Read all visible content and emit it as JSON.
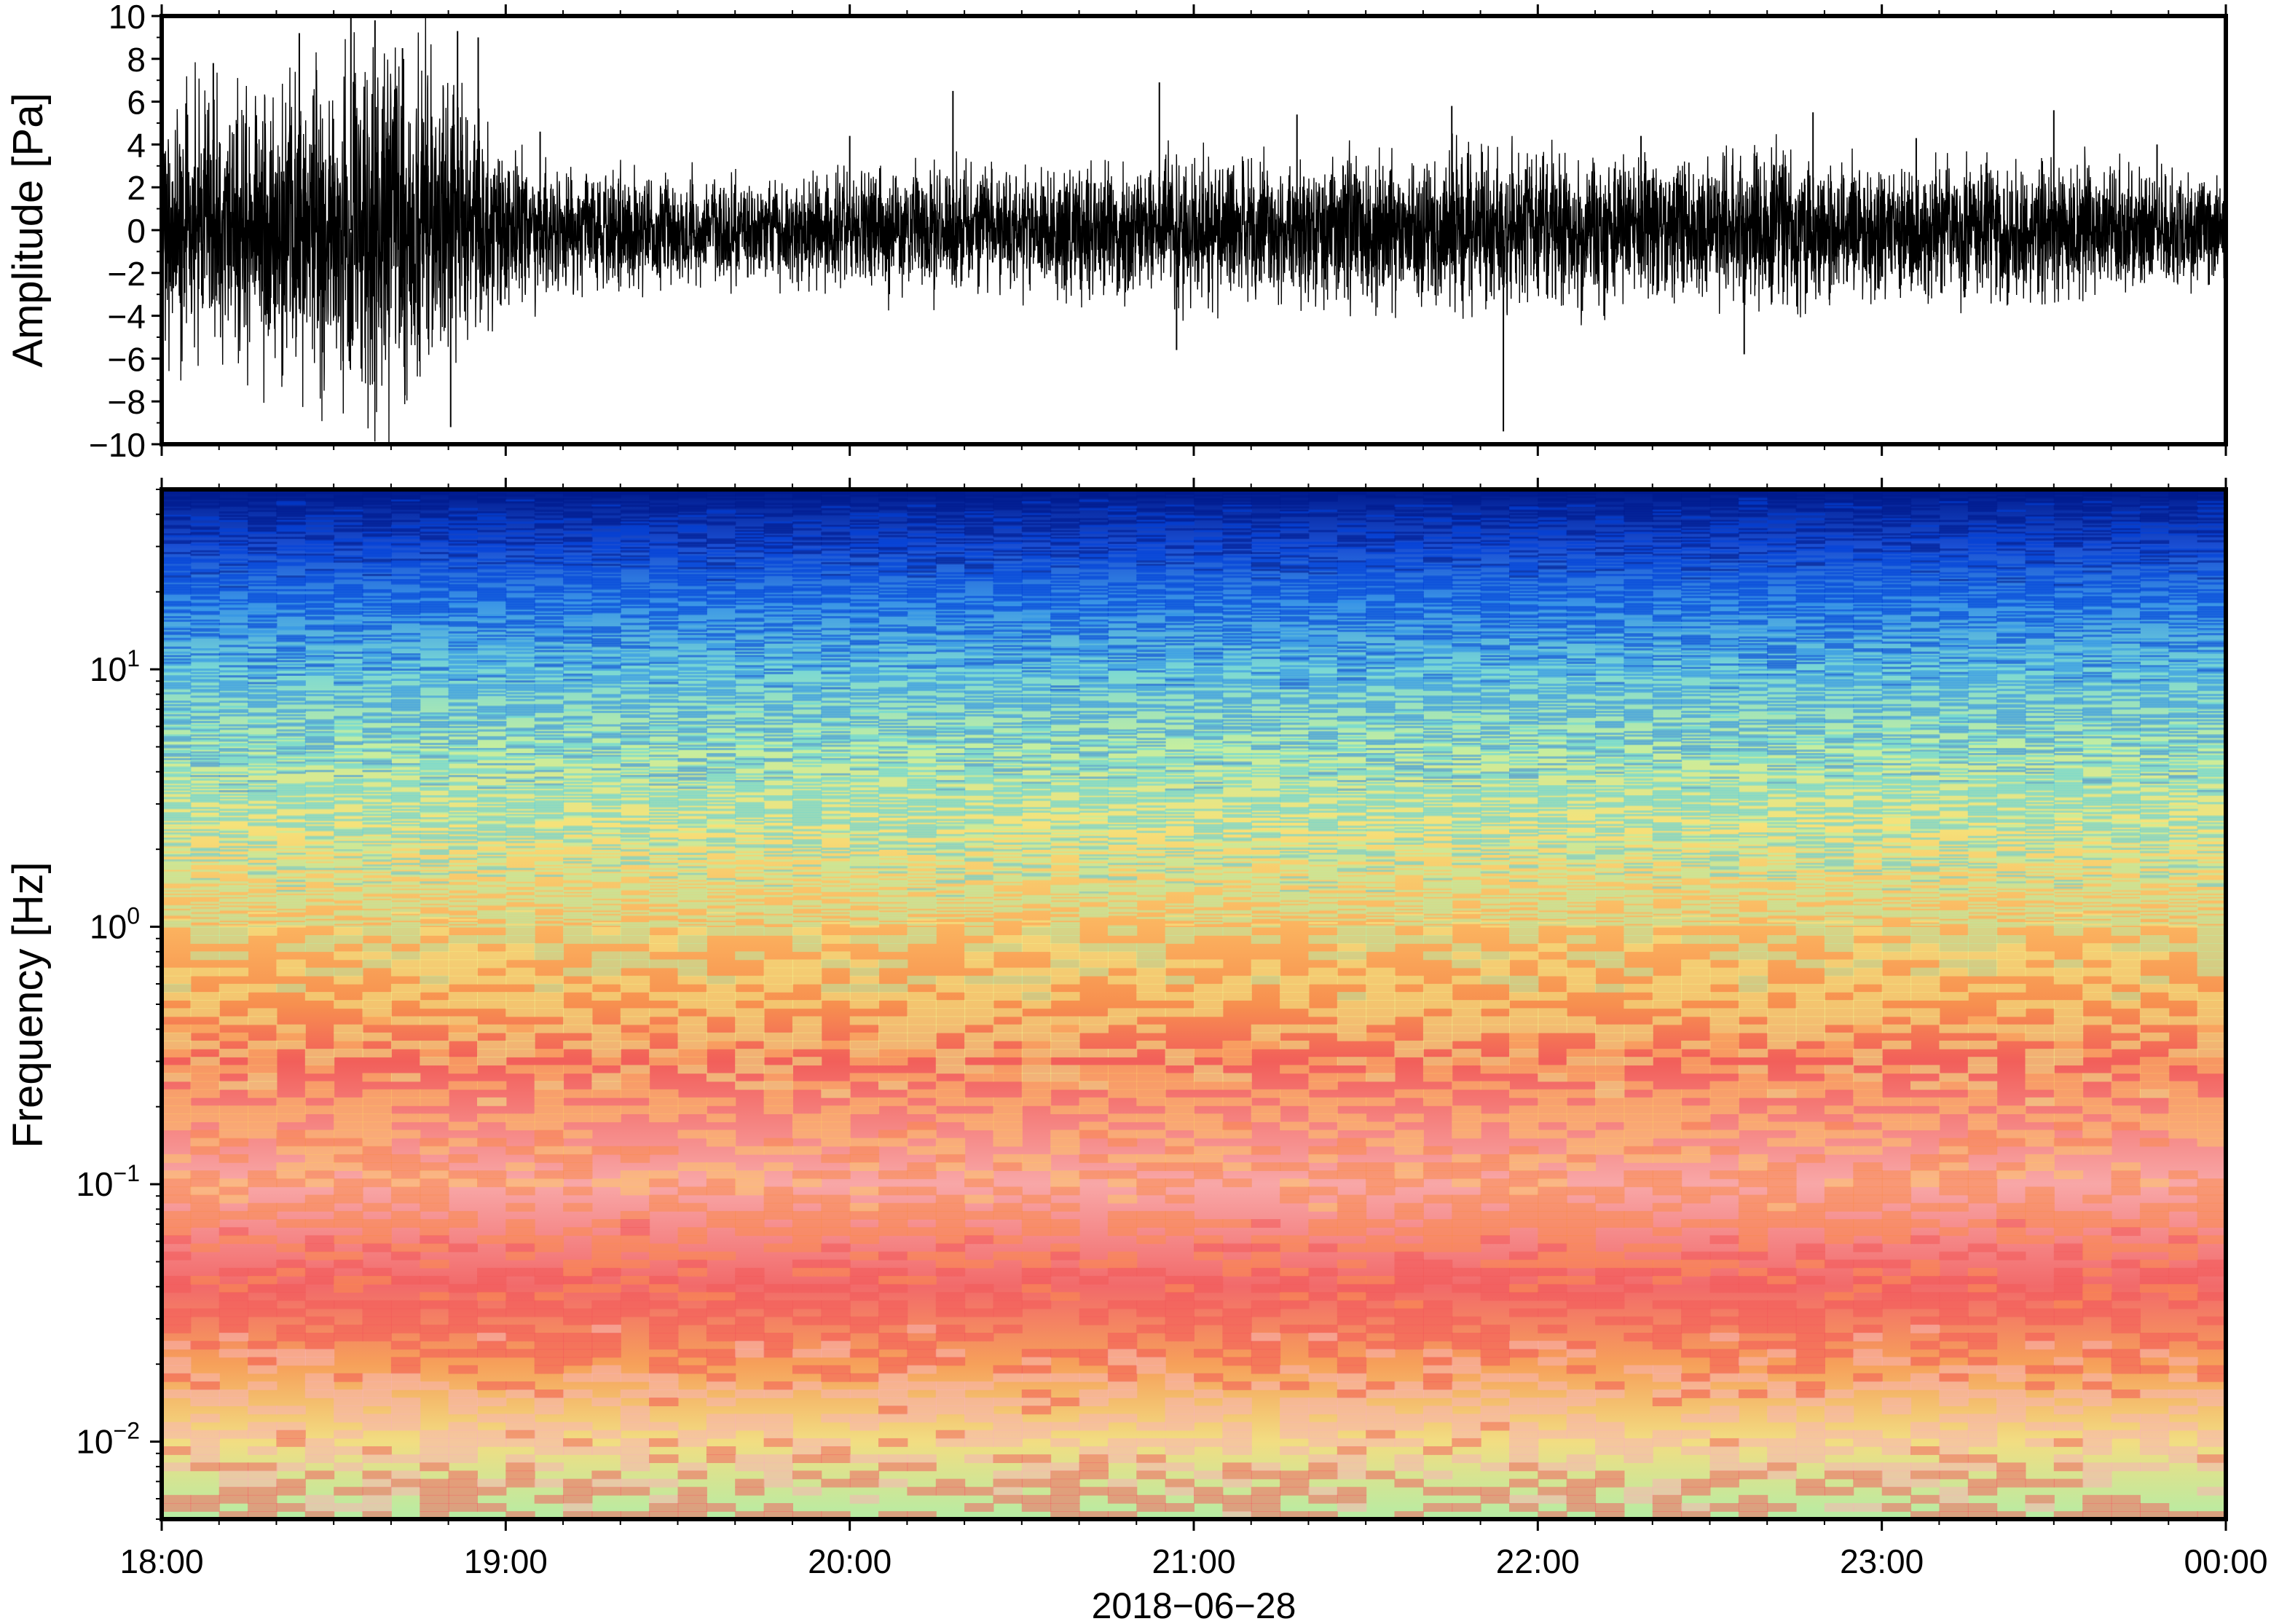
{
  "chart_data": [
    {
      "type": "line",
      "panel": "waveform",
      "ylabel": "Amplitude [Pa]",
      "ylim": [
        -10,
        10
      ],
      "yticks": [
        "10",
        "8",
        "6",
        "4",
        "2",
        "0",
        "−2",
        "−4",
        "−6",
        "−8",
        "−10"
      ],
      "ytick_values": [
        10,
        8,
        6,
        4,
        2,
        0,
        -2,
        -4,
        -6,
        -8,
        -10
      ],
      "xlim": [
        "2018-06-28 18:00",
        "2018-06-29 00:00"
      ],
      "x_label_ticks": [
        "18:00",
        "19:00",
        "20:00",
        "21:00",
        "22:00",
        "23:00",
        "00:00"
      ],
      "series": [
        {
          "x_hours": [
            0.0,
            0.25,
            0.5,
            0.75,
            1.0,
            1.25,
            1.5,
            1.75,
            2.0,
            2.25,
            2.5,
            2.75,
            3.0,
            3.25,
            3.5,
            3.75,
            4.0,
            4.25,
            4.5,
            4.75,
            5.0,
            5.25,
            5.5,
            5.75,
            6.0
          ],
          "envelope": [
            3.0,
            3.4,
            4.2,
            4.6,
            2.0,
            1.6,
            1.4,
            1.3,
            1.5,
            1.6,
            1.7,
            1.7,
            1.8,
            1.8,
            1.9,
            2.0,
            2.0,
            1.9,
            1.9,
            2.0,
            1.8,
            1.7,
            1.8,
            1.6,
            1.3
          ],
          "peaks_x_hours": [
            0.15,
            0.4,
            0.55,
            0.62,
            0.7,
            0.86,
            0.92,
            0.84,
            1.1,
            2.0,
            2.3,
            2.9,
            2.95,
            3.3,
            3.75,
            3.9,
            4.3,
            4.6,
            4.8,
            5.1,
            5.5,
            5.8
          ],
          "peaks_y": [
            7.8,
            9.2,
            10.0,
            9.8,
            8.5,
            9.3,
            9.0,
            -9.2,
            4.6,
            4.4,
            6.5,
            6.9,
            -5.6,
            5.4,
            5.8,
            -9.4,
            4.4,
            -5.8,
            5.5,
            4.3,
            5.6,
            4.0
          ]
        }
      ]
    },
    {
      "type": "heatmap",
      "panel": "spectrogram",
      "ylabel": "Frequency [Hz]",
      "xlabel": "2018−06−28",
      "yscale": "log",
      "ylim": [
        0.005,
        50
      ],
      "yticks": [
        {
          "base": "10",
          "exp": "1",
          "value": 10
        },
        {
          "base": "10",
          "exp": "0",
          "value": 1
        },
        {
          "base": "10",
          "exp": "−1",
          "value": 0.1
        },
        {
          "base": "10",
          "exp": "−2",
          "value": 0.01
        }
      ],
      "xlim": [
        "2018-06-28 18:00",
        "2018-06-29 00:00"
      ],
      "x_label_ticks": [
        "18:00",
        "19:00",
        "20:00",
        "21:00",
        "22:00",
        "23:00",
        "00:00"
      ],
      "colormap": [
        "#001a8c",
        "#0040d8",
        "#2f8fe8",
        "#5fd4e0",
        "#b8f0a8",
        "#f0f08a",
        "#fbc46a",
        "#f98c4e",
        "#f25a5a",
        "#f8b4b4",
        "#f26464"
      ],
      "frequency_profile": [
        {
          "hz": 50,
          "color": "#001a8c"
        },
        {
          "hz": 30,
          "color": "#1a4fd4"
        },
        {
          "hz": 18,
          "color": "#3a95e6"
        },
        {
          "hz": 10,
          "color": "#7ad8d4"
        },
        {
          "hz": 5,
          "color": "#c4eea0"
        },
        {
          "hz": 2.5,
          "color": "#f5e27a"
        },
        {
          "hz": 1,
          "color": "#fbb35f"
        },
        {
          "hz": 0.5,
          "color": "#f7904f"
        },
        {
          "hz": 0.3,
          "color": "#f25f5a"
        },
        {
          "hz": 0.1,
          "color": "#f8a7a7"
        },
        {
          "hz": 0.04,
          "color": "#f26a6a"
        },
        {
          "hz": 0.02,
          "color": "#f6a05a"
        },
        {
          "hz": 0.01,
          "color": "#f2dd82"
        },
        {
          "hz": 0.005,
          "color": "#b6eca4"
        }
      ]
    }
  ]
}
